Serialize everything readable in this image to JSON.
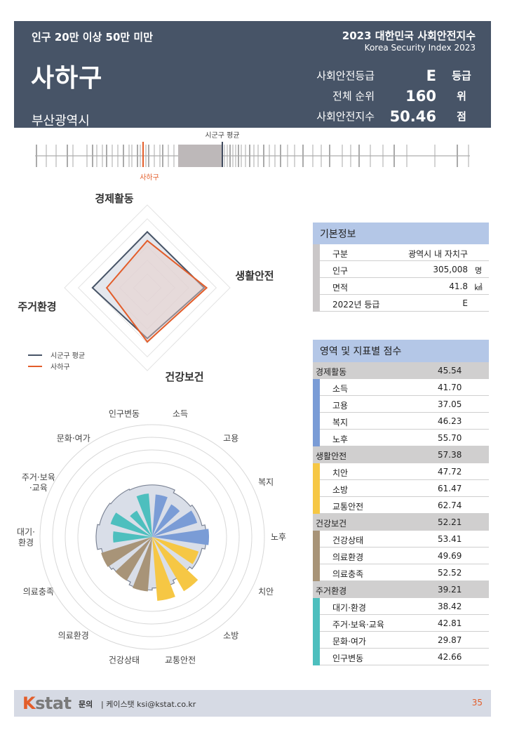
{
  "header": {
    "group": "인구 20만 이상 50만 미만",
    "district": "사하구",
    "city": "부산광역시",
    "title": "2023 대한민국 사회안전지수",
    "subtitle": "Korea Security Index 2023",
    "stats": [
      {
        "label": "사회안전등급",
        "value": "E",
        "unit": "등급"
      },
      {
        "label": "전체 순위",
        "value": "160",
        "unit": "위"
      },
      {
        "label": "사회안전지수",
        "value": "50.46",
        "unit": "점"
      }
    ]
  },
  "barcode": {
    "avg_label": "시군구 평균",
    "self_label": "사하구",
    "avg_color": "#3f4a5e",
    "self_color": "#e35d2a"
  },
  "radar": {
    "axes": [
      "경제활동",
      "생활안전",
      "건강보건",
      "주거환경"
    ],
    "legend": [
      "시군구 평균",
      "사하구"
    ],
    "avg_color": "#475467",
    "self_color": "#e35d2a"
  },
  "rose": {
    "labels": [
      "소득",
      "고용",
      "복지",
      "노후",
      "치안",
      "소방",
      "교통안전",
      "건강상태",
      "의료환경",
      "의료충족",
      "대기·\n환경",
      "주거·보육\n·교육",
      "문화·여가",
      "인구변동"
    ]
  },
  "basic": {
    "title": "기본정보",
    "rows": [
      {
        "k": "구분",
        "v": "광역시 내 자치구",
        "u": ""
      },
      {
        "k": "인구",
        "v": "305,008",
        "u": "명"
      },
      {
        "k": "면적",
        "v": "41.8",
        "u": "㎢"
      },
      {
        "k": "2022년 등급",
        "v": "E",
        "u": ""
      }
    ]
  },
  "scores": {
    "title": "영역 및 지표별 점수",
    "domains": [
      {
        "name": "경제활동",
        "score": "45.54",
        "color": "#7a9cd6",
        "items": [
          {
            "name": "소득",
            "score": "41.70"
          },
          {
            "name": "고용",
            "score": "37.05"
          },
          {
            "name": "복지",
            "score": "46.23"
          },
          {
            "name": "노후",
            "score": "55.70"
          }
        ]
      },
      {
        "name": "생활안전",
        "score": "57.38",
        "color": "#f6c744",
        "items": [
          {
            "name": "치안",
            "score": "47.72"
          },
          {
            "name": "소방",
            "score": "61.47"
          },
          {
            "name": "교통안전",
            "score": "62.74"
          }
        ]
      },
      {
        "name": "건강보건",
        "score": "52.21",
        "color": "#a89478",
        "items": [
          {
            "name": "건강상태",
            "score": "53.41"
          },
          {
            "name": "의료환경",
            "score": "49.69"
          },
          {
            "name": "의료충족",
            "score": "52.52"
          }
        ]
      },
      {
        "name": "주거환경",
        "score": "39.21",
        "color": "#4dbfbe",
        "items": [
          {
            "name": "대기·환경",
            "score": "38.42"
          },
          {
            "name": "주거·보육·교육",
            "score": "42.81"
          },
          {
            "name": "문화·여가",
            "score": "29.87"
          },
          {
            "name": "인구변동",
            "score": "42.66"
          }
        ]
      }
    ]
  },
  "footer": {
    "logo_k": "K",
    "logo_rest": "stat",
    "contact_label": "문의",
    "contact": "| 케이스탯 ksi@kstat.co.kr",
    "page": "35"
  }
}
